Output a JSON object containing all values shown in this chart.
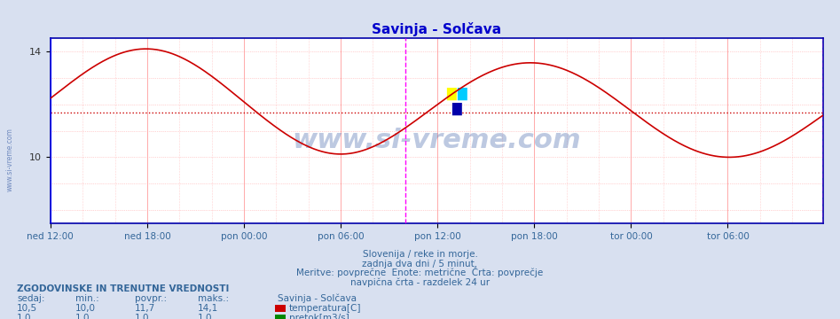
{
  "title": "Savinja - Solčava",
  "title_color": "#0000cc",
  "bg_color": "#d8e0f0",
  "plot_bg_color": "#ffffff",
  "line_color": "#cc0000",
  "avg_line_color": "#cc0000",
  "avg_value": 11.7,
  "ylim": [
    7.5,
    14.5
  ],
  "yticks": [
    10,
    14
  ],
  "xtick_labels": [
    "ned 12:00",
    "ned 18:00",
    "pon 00:00",
    "pon 06:00",
    "pon 12:00",
    "pon 18:00",
    "tor 00:00",
    "tor 06:00"
  ],
  "grid_color": "#ffaaaa",
  "vline_color_blue": "#0000ff",
  "vline_color_magenta": "#ff00ff",
  "watermark_text": "www.si-vreme.com",
  "watermark_color": "#4466aa",
  "watermark_alpha": 0.35,
  "footer_lines": [
    "Slovenija / reke in morje.",
    "zadnja dva dni / 5 minut.",
    "Meritve: povprečne  Enote: metrične  Črta: povprečje",
    "navpična črta - razdelek 24 ur"
  ],
  "footer_color": "#336699",
  "table_header": "ZGODOVINSKE IN TRENUTNE VREDNOSTI",
  "table_cols": [
    "sedaj:",
    "min.:",
    "povpr.:",
    "maks.:"
  ],
  "table_col_header": "Savinja - Solčava",
  "table_rows": [
    [
      "10,5",
      "10,0",
      "11,7",
      "14,1",
      "temperatura[C]",
      "#cc0000"
    ],
    [
      "1,0",
      "1,0",
      "1,0",
      "1,0",
      "pretok[m3/s]",
      "#008800"
    ]
  ],
  "table_color": "#336699",
  "n_points": 576,
  "temp_min_val": 10.0,
  "temp_max_val": 14.1
}
